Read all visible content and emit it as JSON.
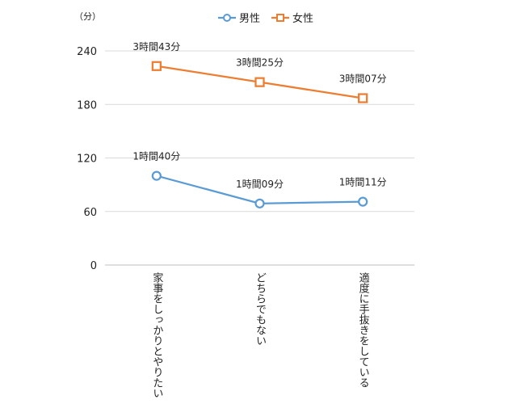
{
  "chart_data": {
    "type": "line",
    "unit_label": "（分）",
    "categories": [
      "家事をしっかりとやりたい",
      "どちらでもない",
      "適度に手抜きをしている"
    ],
    "yticks": [
      "0",
      "60",
      "120",
      "180",
      "240"
    ],
    "ylim": [
      0,
      240
    ],
    "grid": true,
    "legend_position": "top",
    "series": [
      {
        "name": "男性",
        "color": "#5b9bd5",
        "marker": "circle",
        "values": [
          100,
          69,
          71
        ],
        "labels": [
          "1時間40分",
          "1時間09分",
          "1時間11分"
        ]
      },
      {
        "name": "女性",
        "color": "#ed7d31",
        "marker": "square",
        "values": [
          223,
          205,
          187
        ],
        "labels": [
          "3時間43分",
          "3時間25分",
          "3時間07分"
        ]
      }
    ]
  }
}
